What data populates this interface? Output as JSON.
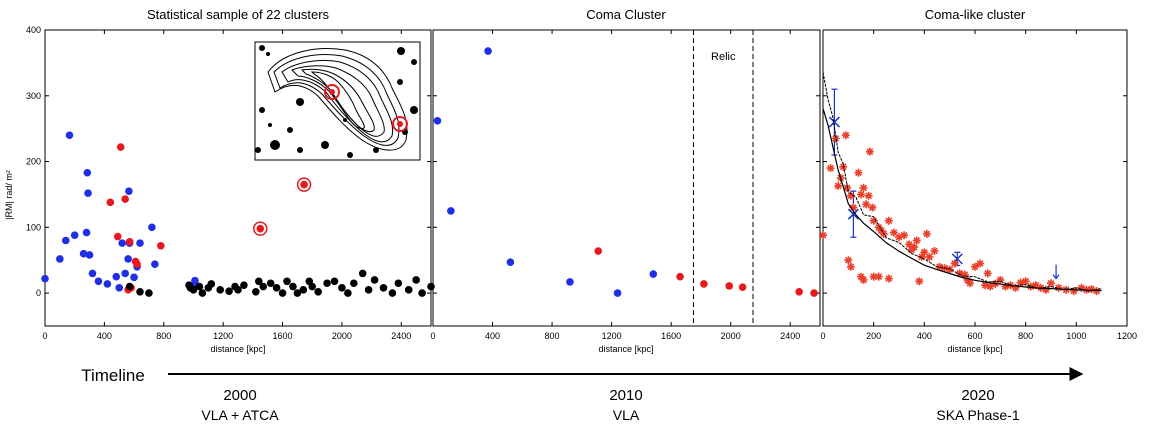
{
  "figure": {
    "ylabel": "|RM| rad/ m²",
    "timeline_label": "Timeline",
    "eras": [
      {
        "year": "2000",
        "instrument": "VLA + ATCA"
      },
      {
        "year": "2010",
        "instrument": "VLA"
      },
      {
        "year": "2020",
        "instrument": "SKA Phase-1"
      }
    ],
    "colors": {
      "blue": "#1f2fe6",
      "red": "#e8181c",
      "black": "#000000",
      "blue_marker": "#1a34c8",
      "red_star": "#e8402a"
    }
  },
  "chart_data": [
    {
      "type": "scatter",
      "title": "Statistical sample of 22 clusters",
      "xlabel": "distance [kpc]",
      "ylabel": "|RM| rad/ m²",
      "xlim": [
        0,
        2600
      ],
      "ylim": [
        -50,
        400
      ],
      "xticks": [
        0,
        400,
        800,
        1200,
        1600,
        2000,
        2400
      ],
      "yticks": [
        0,
        100,
        200,
        300,
        400
      ],
      "inset": "contour map with two circled sources",
      "series": [
        {
          "color": "blue",
          "points": [
            [
              0,
              22
            ],
            [
              100,
              52
            ],
            [
              140,
              80
            ],
            [
              165,
              240
            ],
            [
              200,
              88
            ],
            [
              260,
              60
            ],
            [
              280,
              92
            ],
            [
              285,
              183
            ],
            [
              290,
              152
            ],
            [
              300,
              58
            ],
            [
              320,
              30
            ],
            [
              360,
              18
            ],
            [
              420,
              14
            ],
            [
              480,
              25
            ],
            [
              500,
              8
            ],
            [
              520,
              76
            ],
            [
              540,
              30
            ],
            [
              560,
              52
            ],
            [
              565,
              155
            ],
            [
              570,
              76
            ],
            [
              600,
              24
            ],
            [
              620,
              40
            ],
            [
              640,
              76
            ],
            [
              720,
              100
            ],
            [
              740,
              44
            ],
            [
              980,
              8
            ],
            [
              1010,
              19
            ],
            [
              1010,
              14
            ]
          ]
        },
        {
          "color": "red",
          "points": [
            [
              440,
              138
            ],
            [
              490,
              86
            ],
            [
              510,
              222
            ],
            [
              540,
              143
            ],
            [
              560,
              5
            ],
            [
              570,
              78
            ],
            [
              580,
              8
            ],
            [
              610,
              48
            ],
            [
              620,
              44
            ],
            [
              780,
              72
            ]
          ]
        },
        {
          "color": "red_circled",
          "points": [
            [
              1450,
              98
            ],
            [
              1745,
              165
            ]
          ]
        },
        {
          "color": "black",
          "points": [
            [
              570,
              10
            ],
            [
              640,
              2
            ],
            [
              700,
              0
            ],
            [
              970,
              12
            ],
            [
              980,
              8
            ],
            [
              1000,
              5
            ],
            [
              1040,
              10
            ],
            [
              1060,
              0
            ],
            [
              1100,
              8
            ],
            [
              1120,
              14
            ],
            [
              1180,
              5
            ],
            [
              1240,
              3
            ],
            [
              1280,
              10
            ],
            [
              1300,
              5
            ],
            [
              1340,
              12
            ],
            [
              1420,
              2
            ],
            [
              1440,
              18
            ],
            [
              1470,
              10
            ],
            [
              1520,
              15
            ],
            [
              1560,
              8
            ],
            [
              1600,
              0
            ],
            [
              1630,
              18
            ],
            [
              1670,
              10
            ],
            [
              1700,
              0
            ],
            [
              1740,
              5
            ],
            [
              1780,
              18
            ],
            [
              1800,
              10
            ],
            [
              1840,
              2
            ],
            [
              1900,
              15
            ],
            [
              1950,
              18
            ],
            [
              2000,
              8
            ],
            [
              2040,
              0
            ],
            [
              2080,
              15
            ],
            [
              2140,
              30
            ],
            [
              2180,
              5
            ],
            [
              2220,
              20
            ],
            [
              2280,
              8
            ],
            [
              2340,
              0
            ],
            [
              2380,
              15
            ],
            [
              2450,
              5
            ],
            [
              2500,
              20
            ],
            [
              2540,
              0
            ],
            [
              2600,
              10
            ]
          ]
        }
      ]
    },
    {
      "type": "scatter",
      "title": "Coma Cluster",
      "xlabel": "distance [kpc]",
      "xlim": [
        0,
        2600
      ],
      "ylim": [
        -50,
        400
      ],
      "xticks": [
        0,
        400,
        800,
        1200,
        1600,
        2000,
        2400
      ],
      "yticks": [
        0,
        100,
        200,
        300,
        400
      ],
      "annotation": "Relic",
      "relic_bounds": [
        1750,
        2150
      ],
      "series": [
        {
          "color": "blue",
          "points": [
            [
              30,
              262
            ],
            [
              120,
              125
            ],
            [
              370,
              368
            ],
            [
              520,
              47
            ],
            [
              920,
              17
            ],
            [
              1240,
              0
            ],
            [
              1480,
              29
            ]
          ]
        },
        {
          "color": "red",
          "points": [
            [
              1110,
              64
            ],
            [
              1660,
              25
            ],
            [
              1820,
              14
            ],
            [
              1990,
              11
            ],
            [
              2080,
              9
            ],
            [
              2460,
              2
            ],
            [
              2560,
              0
            ]
          ]
        }
      ]
    },
    {
      "type": "scatter",
      "title": "Coma-like cluster",
      "xlabel": "distance [kpc]",
      "xlim": [
        0,
        1200
      ],
      "ylim": [
        -50,
        400
      ],
      "xticks": [
        0,
        200,
        400,
        600,
        800,
        1000,
        1200
      ],
      "yticks": [
        0,
        100,
        200,
        300,
        400
      ],
      "series": [
        {
          "color": "blue",
          "kind": "errorbar",
          "points": [
            [
              45,
              260,
              50
            ],
            [
              120,
              120,
              35
            ],
            [
              530,
              52,
              10
            ]
          ]
        },
        {
          "color": "blue",
          "kind": "upper_limit",
          "points": [
            [
              920,
              22
            ]
          ]
        },
        {
          "color": "red_star",
          "points": [
            [
              0,
              88
            ],
            [
              30,
              190
            ],
            [
              50,
              235
            ],
            [
              60,
              163
            ],
            [
              70,
              175
            ],
            [
              80,
              192
            ],
            [
              90,
              240
            ],
            [
              95,
              160
            ],
            [
              110,
              148
            ],
            [
              120,
              130
            ],
            [
              140,
              183
            ],
            [
              150,
              150
            ],
            [
              160,
              160
            ],
            [
              170,
              135
            ],
            [
              180,
              148
            ],
            [
              185,
              215
            ],
            [
              195,
              130
            ],
            [
              200,
              110
            ],
            [
              220,
              100
            ],
            [
              230,
              95
            ],
            [
              240,
              90
            ],
            [
              260,
              110
            ],
            [
              280,
              92
            ],
            [
              300,
              85
            ],
            [
              320,
              88
            ],
            [
              340,
              74
            ],
            [
              350,
              66
            ],
            [
              360,
              70
            ],
            [
              370,
              80
            ],
            [
              390,
              55
            ],
            [
              400,
              62
            ],
            [
              410,
              90
            ],
            [
              420,
              55
            ],
            [
              440,
              64
            ],
            [
              460,
              40
            ],
            [
              480,
              38
            ],
            [
              500,
              36
            ],
            [
              520,
              45
            ],
            [
              540,
              30
            ],
            [
              560,
              28
            ],
            [
              570,
              20
            ],
            [
              580,
              15
            ],
            [
              600,
              40
            ],
            [
              620,
              45
            ],
            [
              640,
              12
            ],
            [
              650,
              30
            ],
            [
              660,
              10
            ],
            [
              680,
              14
            ],
            [
              700,
              20
            ],
            [
              720,
              10
            ],
            [
              740,
              12
            ],
            [
              760,
              8
            ],
            [
              780,
              16
            ],
            [
              800,
              18
            ],
            [
              820,
              10
            ],
            [
              840,
              12
            ],
            [
              860,
              8
            ],
            [
              880,
              5
            ],
            [
              900,
              15
            ],
            [
              930,
              8
            ],
            [
              960,
              5
            ],
            [
              990,
              3
            ],
            [
              1020,
              8
            ],
            [
              1040,
              5
            ],
            [
              1060,
              6
            ],
            [
              1080,
              3
            ],
            [
              100,
              50
            ],
            [
              110,
              40
            ],
            [
              150,
              25
            ],
            [
              160,
              20
            ],
            [
              200,
              25
            ],
            [
              220,
              25
            ],
            [
              260,
              22
            ],
            [
              380,
              18
            ]
          ]
        },
        {
          "color": "black",
          "kind": "model_line",
          "points": [
            [
              0,
              330
            ],
            [
              20,
              300
            ],
            [
              40,
              260
            ],
            [
              60,
              220
            ],
            [
              80,
              190
            ],
            [
              100,
              160
            ],
            [
              130,
              140
            ],
            [
              160,
              125
            ],
            [
              200,
              110
            ],
            [
              250,
              90
            ],
            [
              300,
              75
            ],
            [
              350,
              62
            ],
            [
              400,
              50
            ],
            [
              450,
              42
            ],
            [
              500,
              35
            ],
            [
              550,
              28
            ],
            [
              600,
              23
            ],
            [
              650,
              19
            ],
            [
              700,
              16
            ],
            [
              750,
              13
            ],
            [
              800,
              11
            ],
            [
              850,
              9
            ],
            [
              900,
              8
            ],
            [
              950,
              7
            ],
            [
              1000,
              6
            ],
            [
              1050,
              5
            ],
            [
              1100,
              5
            ]
          ]
        }
      ]
    }
  ]
}
